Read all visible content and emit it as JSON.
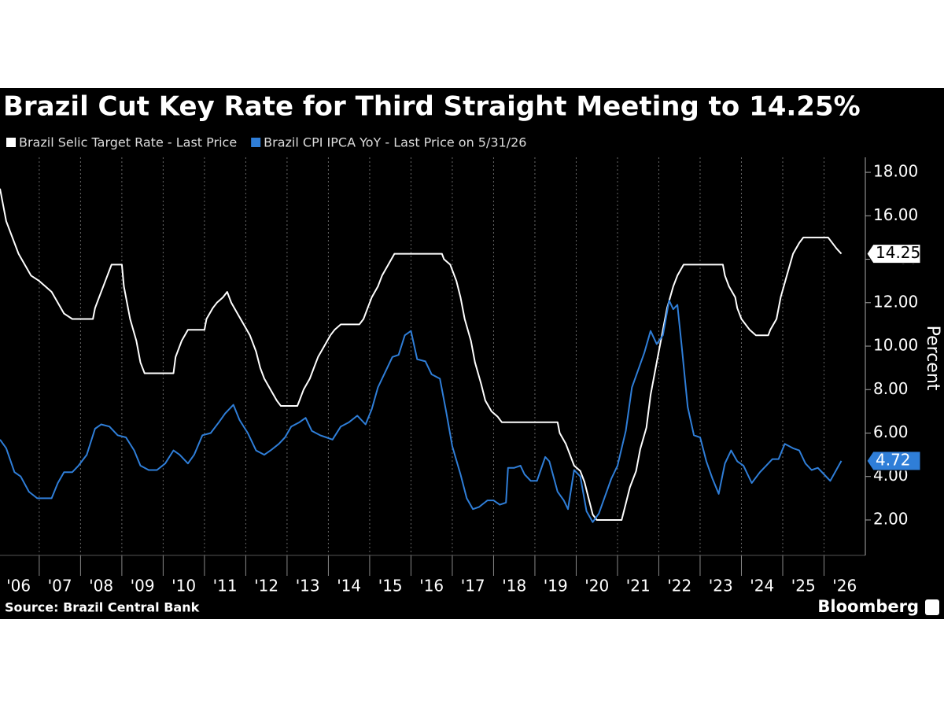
{
  "chart_data": {
    "type": "line",
    "title": "Brazil Cut Key Rate for Third Straight Meeting to 14.25%",
    "y_label": "Percent",
    "source": "Source: Brazil Central Bank",
    "brand": "Bloomberg",
    "xlim": [
      2006.05,
      2027.0
    ],
    "xticks": [
      {
        "value": 2006,
        "label": "'06"
      },
      {
        "value": 2007,
        "label": "'07"
      },
      {
        "value": 2008,
        "label": "'08"
      },
      {
        "value": 2009,
        "label": "'09"
      },
      {
        "value": 2010,
        "label": "'10"
      },
      {
        "value": 2011,
        "label": "'11"
      },
      {
        "value": 2012,
        "label": "'12"
      },
      {
        "value": 2013,
        "label": "'13"
      },
      {
        "value": 2014,
        "label": "'14"
      },
      {
        "value": 2015,
        "label": "'15"
      },
      {
        "value": 2016,
        "label": "'16"
      },
      {
        "value": 2017,
        "label": "'17"
      },
      {
        "value": 2018,
        "label": "'18"
      },
      {
        "value": 2019,
        "label": "'19"
      },
      {
        "value": 2020,
        "label": "'20"
      },
      {
        "value": 2021,
        "label": "'21"
      },
      {
        "value": 2022,
        "label": "'22"
      },
      {
        "value": 2023,
        "label": "'23"
      },
      {
        "value": 2024,
        "label": "'24"
      },
      {
        "value": 2025,
        "label": "'25"
      },
      {
        "value": 2026,
        "label": "'26"
      }
    ],
    "ylim": [
      0.37,
      18.69
    ],
    "yticks": [
      {
        "value": 2,
        "label": "2.00"
      },
      {
        "value": 4,
        "label": "4.00"
      },
      {
        "value": 6,
        "label": "6.00"
      },
      {
        "value": 8,
        "label": "8.00"
      },
      {
        "value": 10,
        "label": "10.00"
      },
      {
        "value": 12,
        "label": "12.00"
      },
      {
        "value": 14,
        "label": "14.00"
      },
      {
        "value": 16,
        "label": "16.00"
      },
      {
        "value": 18,
        "label": "18.00"
      }
    ],
    "xgrid": true,
    "series": [
      {
        "name": "Brazil Selic Target Rate - Last Price",
        "color": "#ffffff",
        "x": [
          2006.05,
          2006.2,
          2006.5,
          2006.8,
          2007.0,
          2007.3,
          2007.6,
          2007.8,
          2008.3,
          2008.35,
          2008.45,
          2008.6,
          2008.75,
          2009.0,
          2009.05,
          2009.2,
          2009.35,
          2009.45,
          2009.55,
          2010.25,
          2010.3,
          2010.45,
          2010.6,
          2011.0,
          2011.05,
          2011.2,
          2011.3,
          2011.45,
          2011.55,
          2011.65,
          2011.8,
          2011.95,
          2012.1,
          2012.25,
          2012.35,
          2012.45,
          2012.6,
          2012.75,
          2012.85,
          2013.25,
          2013.3,
          2013.4,
          2013.55,
          2013.65,
          2013.75,
          2013.9,
          2014.05,
          2014.15,
          2014.3,
          2014.75,
          2014.85,
          2014.95,
          2015.05,
          2015.2,
          2015.3,
          2015.45,
          2015.6,
          2016.75,
          2016.8,
          2016.95,
          2017.1,
          2017.2,
          2017.3,
          2017.45,
          2017.55,
          2017.7,
          2017.8,
          2017.95,
          2018.1,
          2018.2,
          2019.55,
          2019.6,
          2019.75,
          2019.85,
          2019.95,
          2020.1,
          2020.2,
          2020.3,
          2020.4,
          2020.5,
          2021.1,
          2021.2,
          2021.3,
          2021.45,
          2021.55,
          2021.7,
          2021.8,
          2021.95,
          2022.1,
          2022.2,
          2022.35,
          2022.45,
          2022.6,
          2023.55,
          2023.6,
          2023.7,
          2023.85,
          2023.9,
          2024.0,
          2024.2,
          2024.35,
          2024.65,
          2024.7,
          2024.85,
          2024.95,
          2025.1,
          2025.25,
          2025.4,
          2025.5,
          2026.1,
          2026.2,
          2026.3,
          2026.42
        ],
        "values": [
          17.25,
          15.75,
          14.25,
          13.25,
          13.0,
          12.5,
          11.5,
          11.25,
          11.25,
          11.75,
          12.25,
          13.0,
          13.75,
          13.75,
          12.75,
          11.25,
          10.25,
          9.25,
          8.75,
          8.75,
          9.5,
          10.25,
          10.75,
          10.75,
          11.25,
          11.75,
          12.0,
          12.25,
          12.5,
          12.0,
          11.5,
          11.0,
          10.5,
          9.75,
          9.0,
          8.5,
          8.0,
          7.5,
          7.25,
          7.25,
          7.5,
          8.0,
          8.5,
          9.0,
          9.5,
          10.0,
          10.5,
          10.75,
          11.0,
          11.0,
          11.25,
          11.75,
          12.25,
          12.75,
          13.25,
          13.75,
          14.25,
          14.25,
          14.0,
          13.75,
          13.0,
          12.25,
          11.25,
          10.25,
          9.25,
          8.25,
          7.5,
          7.0,
          6.75,
          6.5,
          6.5,
          6.0,
          5.5,
          5.0,
          4.5,
          4.25,
          3.75,
          3.0,
          2.25,
          2.0,
          2.0,
          2.75,
          3.5,
          4.25,
          5.25,
          6.25,
          7.75,
          9.25,
          10.75,
          11.75,
          12.75,
          13.25,
          13.75,
          13.75,
          13.25,
          12.75,
          12.25,
          11.75,
          11.25,
          10.75,
          10.5,
          10.5,
          10.75,
          11.25,
          12.25,
          13.25,
          14.25,
          14.75,
          15.0,
          15.0,
          14.75,
          14.5,
          14.25
        ]
      },
      {
        "name": "Brazil CPI IPCA YoY - Last Price on 5/31/26",
        "color": "#2f7ed8",
        "x": [
          2006.05,
          2006.2,
          2006.4,
          2006.55,
          2006.75,
          2006.95,
          2007.1,
          2007.3,
          2007.45,
          2007.6,
          2007.8,
          2007.95,
          2008.15,
          2008.35,
          2008.5,
          2008.7,
          2008.9,
          2009.1,
          2009.3,
          2009.45,
          2009.65,
          2009.85,
          2010.05,
          2010.25,
          2010.4,
          2010.6,
          2010.75,
          2010.95,
          2011.15,
          2011.35,
          2011.5,
          2011.7,
          2011.85,
          2012.05,
          2012.25,
          2012.45,
          2012.6,
          2012.8,
          2012.95,
          2013.1,
          2013.3,
          2013.45,
          2013.6,
          2013.8,
          2013.95,
          2014.1,
          2014.3,
          2014.5,
          2014.7,
          2014.9,
          2015.05,
          2015.2,
          2015.4,
          2015.55,
          2015.7,
          2015.85,
          2016.0,
          2016.15,
          2016.35,
          2016.5,
          2016.7,
          2016.85,
          2017.0,
          2017.2,
          2017.35,
          2017.5,
          2017.65,
          2017.85,
          2018.0,
          2018.15,
          2018.3,
          2018.35,
          2018.5,
          2018.65,
          2018.75,
          2018.9,
          2019.05,
          2019.25,
          2019.35,
          2019.55,
          2019.7,
          2019.8,
          2019.95,
          2020.1,
          2020.25,
          2020.4,
          2020.55,
          2020.7,
          2020.85,
          2021.0,
          2021.2,
          2021.35,
          2021.5,
          2021.65,
          2021.8,
          2021.95,
          2022.1,
          2022.25,
          2022.35,
          2022.45,
          2022.55,
          2022.7,
          2022.85,
          2023.0,
          2023.15,
          2023.3,
          2023.45,
          2023.6,
          2023.75,
          2023.9,
          2024.05,
          2024.25,
          2024.45,
          2024.6,
          2024.75,
          2024.9,
          2025.05,
          2025.25,
          2025.4,
          2025.55,
          2025.7,
          2025.85,
          2026.0,
          2026.15,
          2026.42
        ],
        "values": [
          5.7,
          5.3,
          4.2,
          4.0,
          3.3,
          3.0,
          3.0,
          3.0,
          3.7,
          4.2,
          4.2,
          4.5,
          5.0,
          6.2,
          6.4,
          6.3,
          5.9,
          5.8,
          5.2,
          4.5,
          4.3,
          4.3,
          4.6,
          5.2,
          5.0,
          4.6,
          5.0,
          5.9,
          6.0,
          6.5,
          6.9,
          7.3,
          6.6,
          6.0,
          5.2,
          5.0,
          5.2,
          5.5,
          5.8,
          6.3,
          6.5,
          6.7,
          6.1,
          5.9,
          5.8,
          5.7,
          6.3,
          6.5,
          6.8,
          6.4,
          7.1,
          8.1,
          8.9,
          9.5,
          9.6,
          10.5,
          10.7,
          9.4,
          9.3,
          8.7,
          8.5,
          7.0,
          5.4,
          4.1,
          3.0,
          2.5,
          2.6,
          2.9,
          2.9,
          2.7,
          2.8,
          4.4,
          4.4,
          4.5,
          4.1,
          3.8,
          3.8,
          4.9,
          4.7,
          3.3,
          2.9,
          2.5,
          4.3,
          4.0,
          2.4,
          1.9,
          2.3,
          3.1,
          3.9,
          4.5,
          6.1,
          8.1,
          8.9,
          9.7,
          10.7,
          10.1,
          10.5,
          12.1,
          11.7,
          11.9,
          10.1,
          7.2,
          5.9,
          5.8,
          4.7,
          3.9,
          3.2,
          4.6,
          5.2,
          4.7,
          4.5,
          3.7,
          4.2,
          4.5,
          4.8,
          4.8,
          5.5,
          5.3,
          5.2,
          4.6,
          4.3,
          4.4,
          4.1,
          3.8,
          4.72
        ]
      }
    ]
  }
}
